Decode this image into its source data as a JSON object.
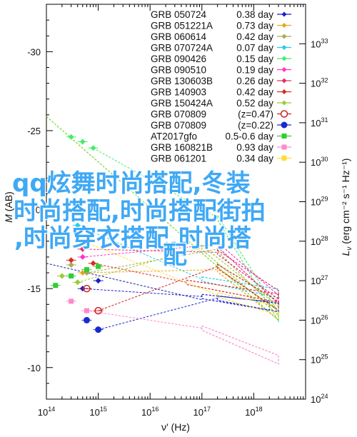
{
  "chart_data": {
    "type": "line",
    "xlabel": "ν′ (Hz)",
    "ylabel_left_main": "M",
    "ylabel_left_unit": " (AB)",
    "ylabel_right_main": "L",
    "ylabel_right_sub": "ν",
    "ylabel_right_unit": " (erg cm⁻² s⁻¹ Hz⁻¹)",
    "xscale": "log",
    "xlim": [
      100000000000000.0,
      1e+19
    ],
    "ylim": [
      -8,
      -33
    ],
    "y2lim": [
      1e+24,
      1e+34
    ],
    "x_ticks": [
      {
        "exp": 14,
        "label": "10",
        "sup": "14"
      },
      {
        "exp": 15,
        "label": "10",
        "sup": "15"
      },
      {
        "exp": 16,
        "label": "10",
        "sup": "16"
      },
      {
        "exp": 17,
        "label": "10",
        "sup": "17"
      },
      {
        "exp": 18,
        "label": "10",
        "sup": "18"
      }
    ],
    "y_ticks": [
      {
        "value": -10,
        "label": "-10"
      },
      {
        "value": -15,
        "label": "-15"
      },
      {
        "value": -20,
        "label": "-20"
      },
      {
        "value": -25,
        "label": "-25"
      },
      {
        "value": -30,
        "label": "-30"
      }
    ],
    "y2_ticks": [
      {
        "exp": 24,
        "label": "10",
        "sup": "24"
      },
      {
        "exp": 25,
        "label": "10",
        "sup": "25"
      },
      {
        "exp": 26,
        "label": "10",
        "sup": "26"
      },
      {
        "exp": 27,
        "label": "10",
        "sup": "27"
      },
      {
        "exp": 28,
        "label": "10",
        "sup": "28"
      },
      {
        "exp": 29,
        "label": "10",
        "sup": "29"
      },
      {
        "exp": 30,
        "label": "10",
        "sup": "30"
      },
      {
        "exp": 31,
        "label": "10",
        "sup": "31"
      },
      {
        "exp": 32,
        "label": "10",
        "sup": "32"
      },
      {
        "exp": 33,
        "label": "10",
        "sup": "33"
      }
    ],
    "legend_position": "top-right",
    "series": [
      {
        "name": "GRB 050724",
        "z": "0.38 day",
        "color": "#1c1ccc",
        "marker": "diamond",
        "x_opt": [
          1000000000000000.0,
          500000000000000.0
        ],
        "y_opt": [
          -15.5,
          -15.0
        ],
        "x_xray": [
          1e+17,
          2e+18
        ],
        "y_xray": [
          -14.5,
          -13.9
        ]
      },
      {
        "name": "GRB 051221A",
        "z": "0.73 day",
        "color": "#e6a817",
        "marker": "diamond",
        "x_opt": [
          500000000000000.0
        ],
        "y_opt": [
          -16.0
        ],
        "x_xray": [
          2e+17,
          3e+18
        ],
        "y_xray": [
          -16.2,
          -13.3
        ]
      },
      {
        "name": "GRB 060614",
        "z": "0.42 day",
        "color": "#aaaa55",
        "marker": "diamond",
        "x_opt": [
          300000000000000.0,
          600000000000000.0
        ],
        "y_opt": [
          -16.5,
          -16.0
        ],
        "x_xray": [
          2e+17,
          3e+18
        ],
        "y_xray": [
          -17.5,
          -13.8
        ]
      },
      {
        "name": "GRB 070724A",
        "z": "0.07 day",
        "color": "#22ccee",
        "marker": "diamond",
        "x_opt": [
          400000000000000.0
        ],
        "y_opt": [
          -19.0
        ],
        "x_xray": [
          1e+17,
          3e+18
        ],
        "y_xray": [
          -15.6,
          -14.7
        ]
      },
      {
        "name": "GRB 090426",
        "z": "0.15 day",
        "color": "#44ee66",
        "marker": "diamond",
        "x_opt": [
          300000000000000.0,
          500000000000000.0,
          800000000000000.0
        ],
        "y_opt": [
          -24.6,
          -24.3,
          -23.9
        ],
        "x_xray": [
          2e+17,
          3e+18
        ],
        "y_xray": [
          -19.5,
          -13.2
        ]
      },
      {
        "name": "GRB 090510",
        "z": "0.19 day",
        "color": "#ff33cc",
        "marker": "diamond",
        "x_opt": [
          500000000000000.0
        ],
        "y_opt": [
          -17.0
        ],
        "x_xray": [
          2e+17,
          3e+18
        ],
        "y_xray": [
          -17.8,
          -14.3
        ]
      },
      {
        "name": "GRB 130603B",
        "z": "0.26 day",
        "color": "#dd3366",
        "marker": "diamond",
        "x_opt": [
          500000000000000.0
        ],
        "y_opt": [
          -17.5
        ],
        "x_xray": [
          2e+17,
          3e+18
        ],
        "y_xray": [
          -17.3,
          -14.6
        ]
      },
      {
        "name": "GRB 140903",
        "z": "0.42 day",
        "color": "#dd2a1a",
        "marker": "diamond",
        "x_opt": [
          300000000000000.0,
          800000000000000.0
        ],
        "y_opt": [
          -16.8,
          -16.6
        ],
        "x_xray": [
          5e+16,
          3e+18
        ],
        "y_xray": [
          -15.4,
          -14.4
        ]
      },
      {
        "name": "GRB 150424A",
        "z": "0.52 day",
        "color": "#99cc33",
        "marker": "diamond",
        "x_opt": [
          200000000000000.0,
          400000000000000.0
        ],
        "y_opt": [
          -15.8,
          -15.4
        ],
        "x_xray": [
          1e+17,
          3e+18
        ],
        "y_xray": [
          -17.6,
          -13.6
        ]
      },
      {
        "name": "GRB 070809",
        "z": "(z=0.47)",
        "color": "#cc2222",
        "marker": "open-circle",
        "x_opt": [
          600000000000000.0,
          1000000000000000.0
        ],
        "y_opt": [
          -15.0,
          -13.6
        ],
        "x_xray": [
          2e+17,
          3e+18
        ],
        "y_xray": [
          -16.4,
          -13.9
        ]
      },
      {
        "name": "GRB 070809",
        "z": "(z=0.22)",
        "color": "#1a2acc",
        "marker": "circle",
        "x_opt": [
          600000000000000.0,
          1000000000000000.0
        ],
        "y_opt": [
          -13.0,
          -12.4
        ],
        "x_xray": [
          2e+17,
          3e+18
        ],
        "y_xray": [
          -14.4,
          -13.8
        ]
      },
      {
        "name": "AT2017gfo",
        "z": "0.5-0.6 day",
        "color": "#33cc33",
        "marker": "square",
        "x_opt": [
          150000000000000.0,
          300000000000000.0,
          600000000000000.0,
          1000000000000000.0
        ],
        "y_opt": [
          -15.2,
          -15.8,
          -16.2,
          -16.4
        ]
      },
      {
        "name": "GRB 160821B",
        "z": "0.93 day",
        "color": "#ff88cc",
        "marker": "square",
        "x_opt": [
          300000000000000.0,
          600000000000000.0
        ],
        "y_opt": [
          -14.2,
          -13.6
        ],
        "x_xray": [
          1e+17,
          3e+18
        ],
        "y_xray": [
          -12.5,
          -10.5
        ]
      },
      {
        "name": "GRB 061201",
        "z": "0.34 day",
        "color": "#ffdd33",
        "marker": "square",
        "x_opt": [
          500000000000000.0
        ],
        "y_opt": [
          -18.0
        ],
        "x_xray": [
          2e+17,
          3e+18
        ],
        "y_xray": [
          -14.6,
          -13.6
        ]
      }
    ],
    "watermark": [
      "qq炫舞时尚搭配,冬装",
      "时尚搭配,时尚搭配街拍",
      ",时尚穿衣搭配,时尚搭",
      "配"
    ]
  }
}
